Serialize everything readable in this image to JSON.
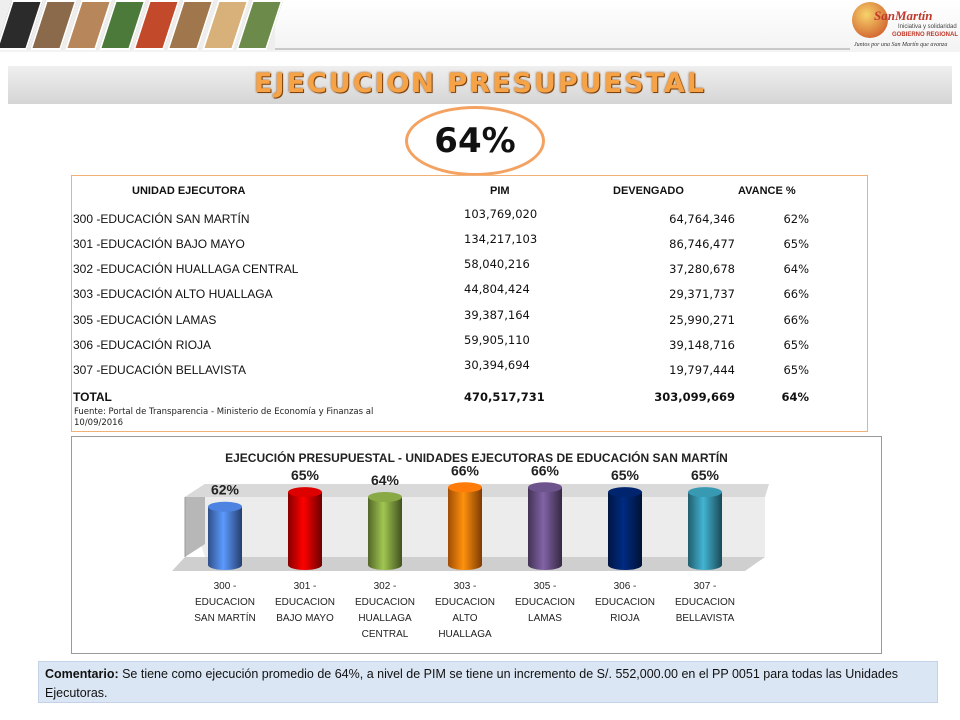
{
  "header": {
    "logo_brand": "SanMartín",
    "logo_line1": "Iniciativa y solidaridad",
    "logo_line2": "GOBIERNO REGIONAL",
    "logo_slogan": "Juntos por una San Martín que avanza"
  },
  "title": "EJECUCION PRESUPUESTAL",
  "overall_percent": "64%",
  "table": {
    "headers": {
      "unit": "UNIDAD EJECUTORA",
      "pim": "PIM",
      "devengado": "DEVENGADO",
      "avance": "AVANCE %"
    },
    "rows": [
      {
        "unit": "300 -EDUCACIÓN SAN MARTÍN",
        "pim": "103,769,020",
        "devengado": "64,764,346",
        "avance": "62%"
      },
      {
        "unit": "301 -EDUCACIÓN BAJO MAYO",
        "pim": "134,217,103",
        "devengado": "86,746,477",
        "avance": "65%"
      },
      {
        "unit": "302 -EDUCACIÓN HUALLAGA CENTRAL",
        "pim": "58,040,216",
        "devengado": "37,280,678",
        "avance": "64%"
      },
      {
        "unit": "303 -EDUCACIÓN ALTO HUALLAGA",
        "pim": "44,804,424",
        "devengado": "29,371,737",
        "avance": "66%"
      },
      {
        "unit": "305 -EDUCACIÓN LAMAS",
        "pim": "39,387,164",
        "devengado": "25,990,271",
        "avance": "66%"
      },
      {
        "unit": "306 -EDUCACIÓN RIOJA",
        "pim": "59,905,110",
        "devengado": "39,148,716",
        "avance": "65%"
      },
      {
        "unit": "307 -EDUCACIÓN BELLAVISTA",
        "pim": "30,394,694",
        "devengado": "19,797,444",
        "avance": "65%"
      }
    ],
    "total": {
      "unit": "TOTAL",
      "pim": "470,517,731",
      "devengado": "303,099,669",
      "avance": "64%"
    },
    "source": "Fuente: Portal de Transparencia - Ministerio de Economía y Finanzas al 10/09/2016"
  },
  "chart_data": {
    "type": "bar",
    "title": "EJECUCIÓN PRESUPUESTAL - UNIDADES EJECUTORAS DE EDUCACIÓN SAN MARTÍN",
    "categories": [
      [
        "300 -",
        "EDUCACION",
        "SAN MARTÍN"
      ],
      [
        "301 -",
        "EDUCACION",
        "BAJO MAYO"
      ],
      [
        "302 -",
        "EDUCACION",
        "HUALLAGA",
        "CENTRAL"
      ],
      [
        "303 -",
        "EDUCACION",
        "ALTO",
        "HUALLAGA"
      ],
      [
        "305 -",
        "EDUCACION",
        "LAMAS"
      ],
      [
        "306 -",
        "EDUCACION",
        "RIOJA"
      ],
      [
        "307 -",
        "EDUCACION",
        "BELLAVISTA"
      ]
    ],
    "values": [
      62,
      65,
      64,
      66,
      66,
      65,
      65
    ],
    "labels": [
      "62%",
      "65%",
      "64%",
      "66%",
      "66%",
      "65%",
      "65%"
    ],
    "colors": [
      "#4472c4",
      "#c00000",
      "#77933c",
      "#e36c09",
      "#60497a",
      "#002060",
      "#31859c"
    ],
    "style": "3d-cylinder",
    "grid": false,
    "legend": "none"
  },
  "comment": {
    "label": "Comentario:",
    "text": " Se tiene como ejecución promedio de 64%, a nivel de PIM se tiene un incremento de S/. 552,000.00 en el PP 0051 para todas las Unidades Ejecutoras."
  }
}
